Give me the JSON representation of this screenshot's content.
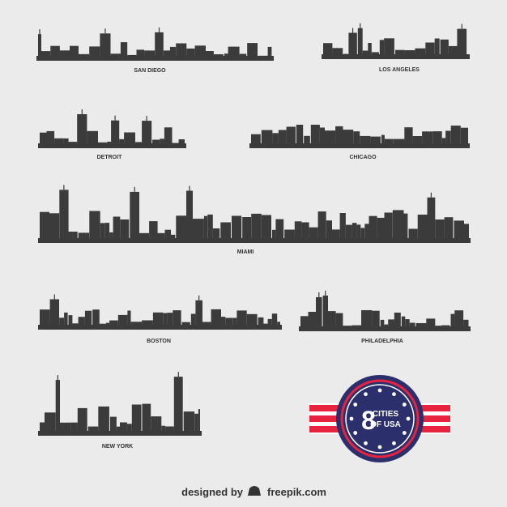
{
  "cities": [
    "SAN DIEGO",
    "LOS ANGELES",
    "DETROIT",
    "CHICAGO",
    "MIAMI",
    "BOSTON",
    "PHILADELPHIA",
    "NEW YORK"
  ],
  "badge": {
    "number": "8",
    "line1": "CITIES",
    "line2": "OF USA"
  },
  "footer": {
    "prefix": "designed by",
    "brand": "freepik.com"
  }
}
